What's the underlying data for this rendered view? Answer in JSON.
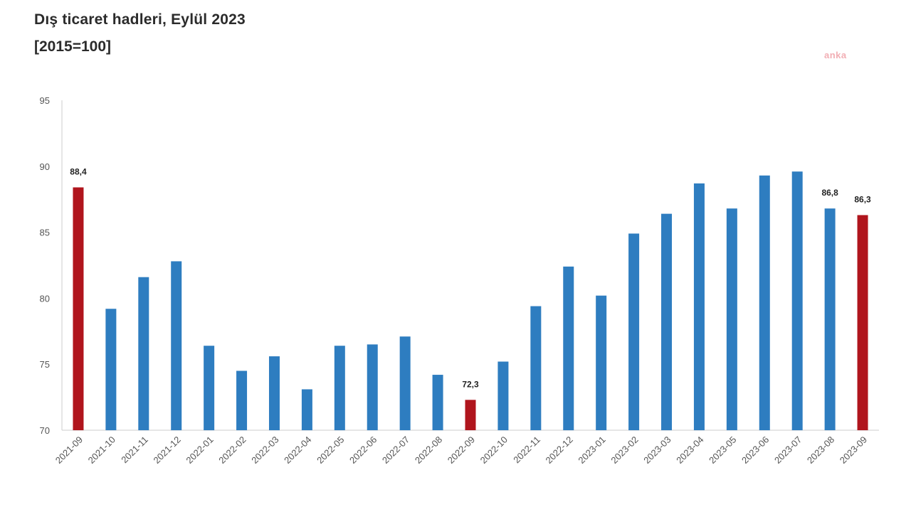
{
  "header": {
    "title": "Dış ticaret hadleri, Eylül 2023",
    "subtitle": "[2015=100]",
    "watermark": "anka"
  },
  "colors": {
    "bar": "#2e7dc0",
    "highlight": "#b0151d",
    "axis": "#cccccc"
  },
  "chart_data": {
    "type": "bar",
    "title": "Dış ticaret hadleri, Eylül 2023",
    "subtitle": "[2015=100]",
    "xlabel": "",
    "ylabel": "",
    "ylim": [
      70,
      95
    ],
    "yticks": [
      70,
      75,
      80,
      85,
      90,
      95
    ],
    "grid": false,
    "categories": [
      "2021-09",
      "2021-10",
      "2021-11",
      "2021-12",
      "2022-01",
      "2022-02",
      "2022-03",
      "2022-04",
      "2022-05",
      "2022-06",
      "2022-07",
      "2022-08",
      "2022-09",
      "2022-10",
      "2022-11",
      "2022-12",
      "2023-01",
      "2023-02",
      "2023-03",
      "2023-04",
      "2023-05",
      "2023-06",
      "2023-07",
      "2023-08",
      "2023-09"
    ],
    "values": [
      88.4,
      79.2,
      81.6,
      82.8,
      76.4,
      74.5,
      75.6,
      73.1,
      76.4,
      76.5,
      77.1,
      74.2,
      72.3,
      75.2,
      79.4,
      82.4,
      80.2,
      84.9,
      86.4,
      88.7,
      86.8,
      89.3,
      89.6,
      86.8,
      86.3
    ],
    "highlighted": [
      0,
      12,
      24
    ],
    "data_labels": [
      {
        "index": 0,
        "text": "88,4"
      },
      {
        "index": 12,
        "text": "72,3"
      },
      {
        "index": 23,
        "text": "86,8"
      },
      {
        "index": 24,
        "text": "86,3"
      }
    ]
  }
}
